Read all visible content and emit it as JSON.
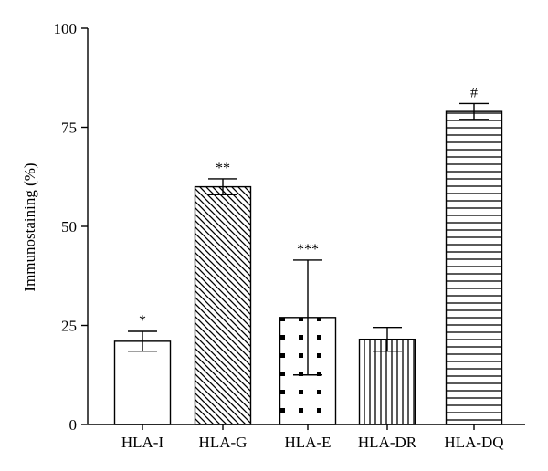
{
  "chart_data": {
    "type": "bar",
    "title": "",
    "xlabel": "",
    "ylabel": "Immunostaining (%)",
    "ylim": [
      0,
      100
    ],
    "yticks": [
      0,
      25,
      50,
      75,
      100
    ],
    "categories": [
      "HLA-I",
      "HLA-G",
      "HLA-E",
      "HLA-DR",
      "HLA-DQ"
    ],
    "values": [
      21,
      60,
      27,
      21.5,
      79
    ],
    "errors": [
      2.5,
      2,
      14.5,
      3,
      2
    ],
    "annotations": [
      "*",
      "**",
      "***",
      "",
      "#"
    ],
    "patterns": [
      "none",
      "diagonal",
      "dots",
      "vertical",
      "horizontal"
    ],
    "grid": false,
    "legend": "none",
    "bar_fill": "#ffffff",
    "bar_stroke": "#000000"
  }
}
